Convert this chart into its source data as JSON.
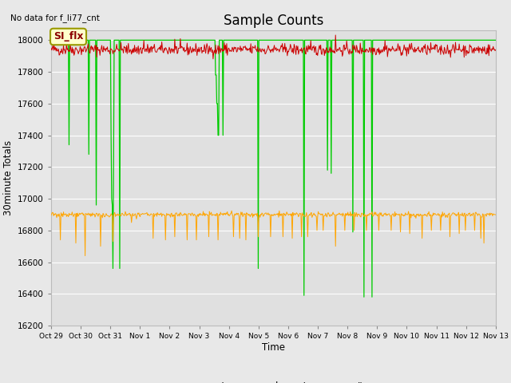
{
  "title": "Sample Counts",
  "ylabel": "30minute Totals",
  "xlabel": "Time",
  "note": "No data for f_li77_cnt",
  "annotation": "SI_flx",
  "ylim": [
    16200,
    18060
  ],
  "fig_bg": "#e8e8e8",
  "plot_bg": "#e0e0e0",
  "wmp_color": "#cc0000",
  "lgr_color": "#ffa500",
  "li75_color": "#00cc00",
  "xtick_labels": [
    "Oct 29",
    "Oct 30",
    "Oct 31",
    "Nov 1",
    "Nov 2",
    "Nov 3",
    "Nov 4",
    "Nov 5",
    "Nov 6",
    "Nov 7",
    "Nov 8",
    "Nov 9",
    "Nov 10",
    "Nov 11",
    "Nov 12",
    "Nov 13"
  ],
  "ytick_values": [
    16200,
    16400,
    16600,
    16800,
    17000,
    17200,
    17400,
    17600,
    17800,
    18000
  ]
}
